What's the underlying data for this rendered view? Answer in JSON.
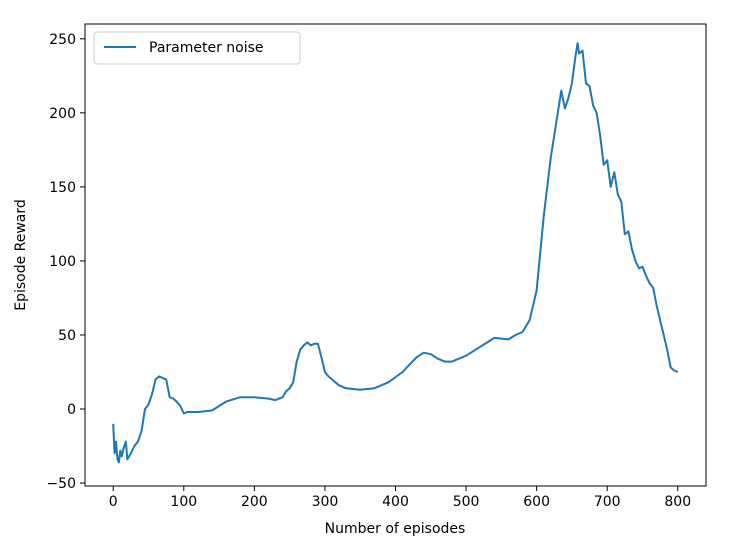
{
  "chart_data": {
    "type": "line",
    "title": "",
    "xlabel": "Number of episodes",
    "ylabel": "Episode Reward",
    "xlim": [
      -40,
      840
    ],
    "ylim": [
      -52,
      260
    ],
    "xticks": [
      0,
      100,
      200,
      300,
      400,
      500,
      600,
      700,
      800
    ],
    "yticks": [
      -50,
      0,
      50,
      100,
      150,
      200,
      250
    ],
    "ytick_labels": [
      "−50",
      "0",
      "50",
      "100",
      "150",
      "200",
      "250"
    ],
    "grid": false,
    "legend": "top-left",
    "series": [
      {
        "name": "Parameter noise",
        "color": "#1f77b4",
        "x": [
          0,
          2,
          4,
          6,
          8,
          10,
          12,
          15,
          18,
          20,
          25,
          30,
          35,
          40,
          45,
          50,
          55,
          60,
          65,
          70,
          75,
          80,
          85,
          90,
          95,
          100,
          105,
          110,
          120,
          140,
          160,
          180,
          200,
          220,
          230,
          240,
          245,
          250,
          255,
          260,
          265,
          270,
          275,
          280,
          285,
          290,
          295,
          300,
          305,
          310,
          320,
          330,
          350,
          370,
          390,
          410,
          420,
          430,
          440,
          450,
          460,
          470,
          480,
          500,
          520,
          530,
          540,
          560,
          570,
          580,
          590,
          600,
          610,
          620,
          625,
          630,
          635,
          640,
          645,
          650,
          655,
          658,
          660,
          665,
          670,
          675,
          680,
          685,
          690,
          695,
          700,
          705,
          710,
          715,
          720,
          725,
          730,
          735,
          740,
          745,
          750,
          755,
          760,
          765,
          770,
          775,
          780,
          785,
          790,
          795,
          800
        ],
        "y": [
          -10,
          -30,
          -22,
          -34,
          -36,
          -28,
          -32,
          -26,
          -22,
          -34,
          -30,
          -25,
          -22,
          -15,
          0,
          3,
          10,
          20,
          22,
          21,
          20,
          8,
          7,
          5,
          2,
          -3,
          -2,
          -2,
          -2,
          -1,
          5,
          8,
          8,
          7,
          6,
          8,
          12,
          14,
          18,
          32,
          40,
          43,
          45,
          43,
          44,
          44,
          35,
          25,
          22,
          20,
          16,
          14,
          13,
          14,
          18,
          25,
          30,
          35,
          38,
          37,
          34,
          32,
          32,
          36,
          42,
          45,
          48,
          47,
          50,
          52,
          60,
          80,
          130,
          170,
          185,
          200,
          215,
          203,
          210,
          220,
          238,
          247,
          240,
          242,
          220,
          218,
          205,
          200,
          185,
          165,
          168,
          150,
          160,
          145,
          140,
          118,
          120,
          108,
          100,
          95,
          96,
          90,
          85,
          82,
          70,
          60,
          50,
          40,
          28,
          26,
          25
        ]
      }
    ]
  }
}
